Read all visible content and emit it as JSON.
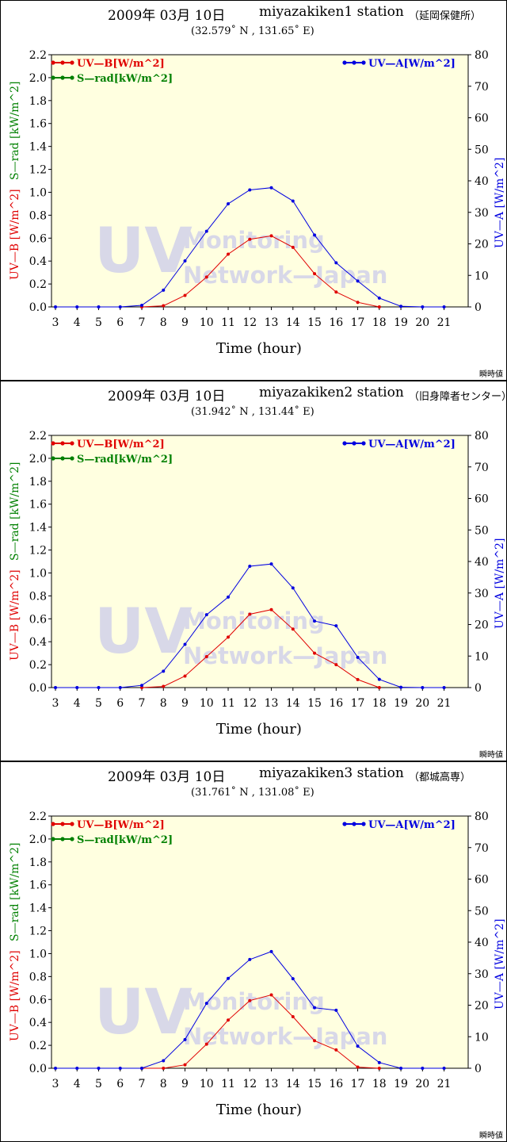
{
  "watermark": {
    "big": "UV",
    "line1": "Monitoring",
    "line2": "Network—Japan"
  },
  "note": "瞬時値",
  "colors": {
    "uvb": "#e00000",
    "srad": "#008000",
    "uva": "#0000e0",
    "plot_bg": "#ffffe0",
    "watermark": "#d8d8e8"
  },
  "chart_data": [
    {
      "type": "line",
      "title": {
        "date": "2009年 03月 10日",
        "station": "miyazakiken1 station",
        "place": "（延岡保健所）",
        "coords": "(32.579˚ N , 131.65˚ E)"
      },
      "xlabel": "Time (hour)",
      "ylabel_left_uvb": "UV—B [W/m^2]",
      "ylabel_left_srad": "S—rad [kW/m^2]",
      "ylabel_right": "UV—A [W/m^2]",
      "x": [
        3,
        4,
        5,
        6,
        7,
        8,
        9,
        10,
        11,
        12,
        13,
        14,
        15,
        16,
        17,
        18,
        19,
        20,
        21
      ],
      "xlim": [
        3,
        21
      ],
      "ylim_left": [
        0,
        2.2
      ],
      "ylim_right": [
        0,
        80
      ],
      "left_ticks": [
        "0.0",
        "0.2",
        "0.4",
        "0.6",
        "0.8",
        "1.0",
        "1.2",
        "1.4",
        "1.6",
        "1.8",
        "2.0",
        "2.2"
      ],
      "right_ticks": [
        "0",
        "10",
        "20",
        "30",
        "40",
        "50",
        "60",
        "70",
        "80"
      ],
      "legend": [
        {
          "label": "UV—B[W/m^2]",
          "color": "uvb"
        },
        {
          "label": "S—rad[kW/m^2]",
          "color": "srad"
        },
        {
          "label": "UV—A[W/m^2]",
          "color": "uva"
        }
      ],
      "series": [
        {
          "name": "UV—B[W/m^2]",
          "axis": "left",
          "color": "#e00000",
          "x": [
            7,
            8,
            9,
            10,
            11,
            12,
            13,
            14,
            15,
            16,
            17,
            18
          ],
          "values": [
            0.0,
            0.01,
            0.1,
            0.26,
            0.46,
            0.59,
            0.62,
            0.52,
            0.29,
            0.13,
            0.04,
            0.0
          ]
        },
        {
          "name": "UV—A[W/m^2]",
          "axis": "right",
          "color": "#0000e0",
          "x": [
            3,
            4,
            5,
            6,
            7,
            8,
            9,
            10,
            11,
            12,
            13,
            14,
            15,
            16,
            17,
            18,
            19,
            20,
            21
          ],
          "values": [
            0,
            0,
            0,
            0,
            0.5,
            5.3,
            14.6,
            24,
            32.7,
            37.1,
            37.8,
            33.6,
            22.8,
            14,
            8.2,
            2.8,
            0.2,
            0,
            0
          ]
        }
      ]
    },
    {
      "type": "line",
      "title": {
        "date": "2009年 03月 10日",
        "station": "miyazakiken2  station",
        "place": "（旧身障者センター）",
        "coords": "(31.942˚ N , 131.44˚ E)"
      },
      "xlabel": "Time (hour)",
      "ylabel_left_uvb": "UV—B [W/m^2]",
      "ylabel_left_srad": "S—rad [kW/m^2]",
      "ylabel_right": "UV—A [W/m^2]",
      "x": [
        3,
        4,
        5,
        6,
        7,
        8,
        9,
        10,
        11,
        12,
        13,
        14,
        15,
        16,
        17,
        18,
        19,
        20,
        21
      ],
      "xlim": [
        3,
        21
      ],
      "ylim_left": [
        0,
        2.2
      ],
      "ylim_right": [
        0,
        80
      ],
      "left_ticks": [
        "0.0",
        "0.2",
        "0.4",
        "0.6",
        "0.8",
        "1.0",
        "1.2",
        "1.4",
        "1.6",
        "1.8",
        "2.0",
        "2.2"
      ],
      "right_ticks": [
        "0",
        "10",
        "20",
        "30",
        "40",
        "50",
        "60",
        "70",
        "80"
      ],
      "legend": [
        {
          "label": "UV—B[W/m^2]",
          "color": "uvb"
        },
        {
          "label": "S—rad[kW/m^2]",
          "color": "srad"
        },
        {
          "label": "UV—A[W/m^2]",
          "color": "uva"
        }
      ],
      "series": [
        {
          "name": "UV—B[W/m^2]",
          "axis": "left",
          "color": "#e00000",
          "x": [
            7,
            8,
            9,
            10,
            11,
            12,
            13,
            14,
            15,
            16,
            17,
            18
          ],
          "values": [
            0.0,
            0.01,
            0.1,
            0.27,
            0.44,
            0.64,
            0.68,
            0.51,
            0.3,
            0.2,
            0.07,
            0.0
          ]
        },
        {
          "name": "UV—A[W/m^2]",
          "axis": "right",
          "color": "#0000e0",
          "x": [
            3,
            4,
            5,
            6,
            7,
            8,
            9,
            10,
            11,
            12,
            13,
            14,
            15,
            16,
            17,
            18,
            19,
            20,
            21
          ],
          "values": [
            0,
            0,
            0,
            0,
            0.7,
            5.2,
            13.7,
            23.1,
            28.7,
            38.5,
            39.2,
            31.6,
            21.1,
            19.6,
            9.6,
            2.6,
            0.1,
            0,
            0
          ]
        }
      ]
    },
    {
      "type": "line",
      "title": {
        "date": "2009年 03月 10日",
        "station": "miyazakiken3  station",
        "place": "（都城高専）",
        "coords": "(31.761˚ N , 131.08˚ E)"
      },
      "xlabel": "Time (hour)",
      "ylabel_left_uvb": "UV—B [W/m^2]",
      "ylabel_left_srad": "S—rad [kW/m^2]",
      "ylabel_right": "UV—A [W/m^2]",
      "x": [
        3,
        4,
        5,
        6,
        7,
        8,
        9,
        10,
        11,
        12,
        13,
        14,
        15,
        16,
        17,
        18,
        19,
        20,
        21
      ],
      "xlim": [
        3,
        21
      ],
      "ylim_left": [
        0,
        2.2
      ],
      "ylim_right": [
        0,
        80
      ],
      "left_ticks": [
        "0.0",
        "0.2",
        "0.4",
        "0.6",
        "0.8",
        "1.0",
        "1.2",
        "1.4",
        "1.6",
        "1.8",
        "2.0",
        "2.2"
      ],
      "right_ticks": [
        "0",
        "10",
        "20",
        "30",
        "40",
        "50",
        "60",
        "70",
        "80"
      ],
      "legend": [
        {
          "label": "UV—B[W/m^2]",
          "color": "uvb"
        },
        {
          "label": "S—rad[kW/m^2]",
          "color": "srad"
        },
        {
          "label": "UV—A[W/m^2]",
          "color": "uva"
        }
      ],
      "series": [
        {
          "name": "UV—B[W/m^2]",
          "axis": "left",
          "color": "#e00000",
          "x": [
            7,
            8,
            9,
            10,
            11,
            12,
            13,
            14,
            15,
            16,
            17,
            18
          ],
          "values": [
            0.0,
            0.0,
            0.03,
            0.21,
            0.42,
            0.59,
            0.64,
            0.45,
            0.24,
            0.16,
            0.01,
            0.0
          ]
        },
        {
          "name": "UV—A[W/m^2]",
          "axis": "right",
          "color": "#0000e0",
          "x": [
            3,
            4,
            5,
            6,
            7,
            8,
            9,
            10,
            11,
            12,
            13,
            14,
            15,
            16,
            17,
            18,
            19,
            20,
            21
          ],
          "values": [
            0,
            0,
            0,
            0,
            0,
            2.4,
            9.1,
            20.6,
            28.5,
            34.5,
            37,
            28.4,
            19.2,
            18.4,
            7,
            1.8,
            0,
            0,
            0
          ]
        }
      ]
    }
  ]
}
